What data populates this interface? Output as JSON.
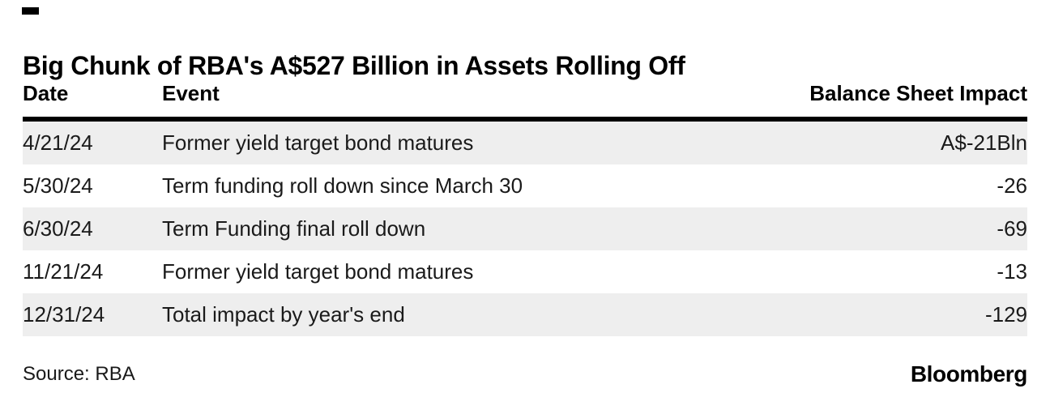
{
  "title": "Big Chunk of RBA's A$527 Billion in Assets Rolling Off",
  "table": {
    "columns": [
      "Date",
      "Event",
      "Balance Sheet Impact"
    ],
    "rows": [
      [
        "4/21/24",
        "Former yield target bond matures",
        "A$-21Bln"
      ],
      [
        "5/30/24",
        "Term funding roll down since March 30",
        "-26"
      ],
      [
        "6/30/24",
        "Term Funding final roll down",
        "-69"
      ],
      [
        "11/21/24",
        "Former yield target bond matures",
        "-13"
      ],
      [
        "12/31/24",
        "Total impact by year's end",
        "-129"
      ]
    ]
  },
  "footer": {
    "source": "Source: RBA",
    "brand": "Bloomberg"
  },
  "colors": {
    "row_alt_background": "#eeeeee",
    "header_rule": "#000000",
    "text": "#1a1a1a"
  },
  "chart_data": {
    "type": "table",
    "title": "Big Chunk of RBA's A$527 Billion in Assets Rolling Off",
    "columns": [
      "Date",
      "Event",
      "Balance Sheet Impact"
    ],
    "rows": [
      {
        "date": "4/21/24",
        "event": "Former yield target bond matures",
        "impact": "A$-21Bln",
        "impact_value": -21
      },
      {
        "date": "5/30/24",
        "event": "Term funding roll down since March 30",
        "impact": "-26",
        "impact_value": -26
      },
      {
        "date": "6/30/24",
        "event": "Term Funding final roll down",
        "impact": "-69",
        "impact_value": -69
      },
      {
        "date": "11/21/24",
        "event": "Former yield target bond matures",
        "impact": "-13",
        "impact_value": -13
      },
      {
        "date": "12/31/24",
        "event": "Total impact by year's end",
        "impact": "-129",
        "impact_value": -129
      }
    ],
    "source": "RBA",
    "brand": "Bloomberg",
    "layout": {
      "alternating_row_shading": true,
      "shaded_rows": [
        0,
        2,
        4
      ],
      "impact_column_alignment": "right"
    }
  }
}
